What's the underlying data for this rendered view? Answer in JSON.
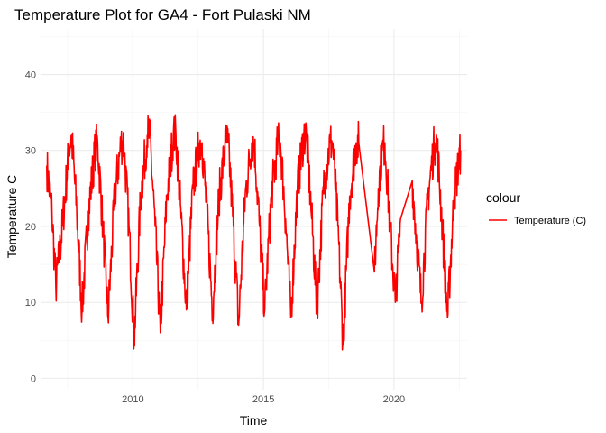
{
  "chart_data": {
    "type": "line",
    "title": "Temperature Plot for GA4 - Fort Pulaski NM",
    "xlabel": "Time",
    "ylabel": "Temperature C",
    "xlim": [
      2006.5,
      2022.8
    ],
    "ylim": [
      -1.5,
      46
    ],
    "x_ticks": [
      2010,
      2015,
      2020
    ],
    "y_ticks": [
      0,
      10,
      20,
      30,
      40
    ],
    "grid": true,
    "legend": {
      "title": "colour",
      "placement": "right",
      "entries": [
        {
          "label": "Temperature (C)",
          "color": "#ff0000"
        }
      ]
    },
    "series": [
      {
        "name": "Temperature (C)",
        "color": "#ff0000",
        "points": [
          [
            2006.7,
            28
          ],
          [
            2006.9,
            22
          ],
          [
            2007.05,
            12
          ],
          [
            2007.3,
            20
          ],
          [
            2007.55,
            30
          ],
          [
            2007.65,
            32
          ],
          [
            2007.85,
            22
          ],
          [
            2008.05,
            9
          ],
          [
            2008.3,
            22
          ],
          [
            2008.55,
            30
          ],
          [
            2008.65,
            31
          ],
          [
            2008.85,
            20
          ],
          [
            2009.05,
            8
          ],
          [
            2009.3,
            24
          ],
          [
            2009.55,
            31
          ],
          [
            2009.65,
            31
          ],
          [
            2009.85,
            20
          ],
          [
            2010.05,
            5
          ],
          [
            2010.3,
            24
          ],
          [
            2010.55,
            32
          ],
          [
            2010.65,
            32
          ],
          [
            2010.85,
            20
          ],
          [
            2011.05,
            6
          ],
          [
            2011.3,
            24
          ],
          [
            2011.55,
            32
          ],
          [
            2011.65,
            32
          ],
          [
            2011.85,
            21
          ],
          [
            2012.05,
            9
          ],
          [
            2012.3,
            25
          ],
          [
            2012.55,
            31
          ],
          [
            2012.65,
            31
          ],
          [
            2012.85,
            21
          ],
          [
            2013.05,
            9
          ],
          [
            2013.3,
            24
          ],
          [
            2013.55,
            31
          ],
          [
            2013.65,
            31
          ],
          [
            2013.85,
            20
          ],
          [
            2014.05,
            7
          ],
          [
            2014.3,
            24
          ],
          [
            2014.55,
            31
          ],
          [
            2014.65,
            31
          ],
          [
            2014.85,
            20
          ],
          [
            2015.05,
            9
          ],
          [
            2015.3,
            24
          ],
          [
            2015.55,
            31
          ],
          [
            2015.65,
            31
          ],
          [
            2015.85,
            21
          ],
          [
            2016.05,
            8
          ],
          [
            2016.3,
            25
          ],
          [
            2016.55,
            32
          ],
          [
            2016.65,
            32
          ],
          [
            2016.85,
            21
          ],
          [
            2017.05,
            9
          ],
          [
            2017.3,
            25
          ],
          [
            2017.55,
            31
          ],
          [
            2017.65,
            31
          ],
          [
            2017.85,
            20
          ],
          [
            2018.05,
            4.5
          ],
          [
            2018.3,
            24
          ],
          [
            2018.55,
            31
          ],
          [
            2018.65,
            31
          ],
          [
            2019.25,
            14
          ],
          [
            2019.4,
            25
          ],
          [
            2019.55,
            30
          ],
          [
            2019.65,
            31
          ],
          [
            2019.85,
            20
          ],
          [
            2020.05,
            10
          ],
          [
            2020.25,
            21
          ],
          [
            2020.7,
            26
          ],
          [
            2020.85,
            19
          ],
          [
            2021.05,
            10
          ],
          [
            2021.3,
            24
          ],
          [
            2021.55,
            31
          ],
          [
            2021.65,
            31
          ],
          [
            2021.85,
            20
          ],
          [
            2022.05,
            8
          ],
          [
            2022.3,
            24
          ],
          [
            2022.55,
            30
          ]
        ]
      }
    ]
  }
}
